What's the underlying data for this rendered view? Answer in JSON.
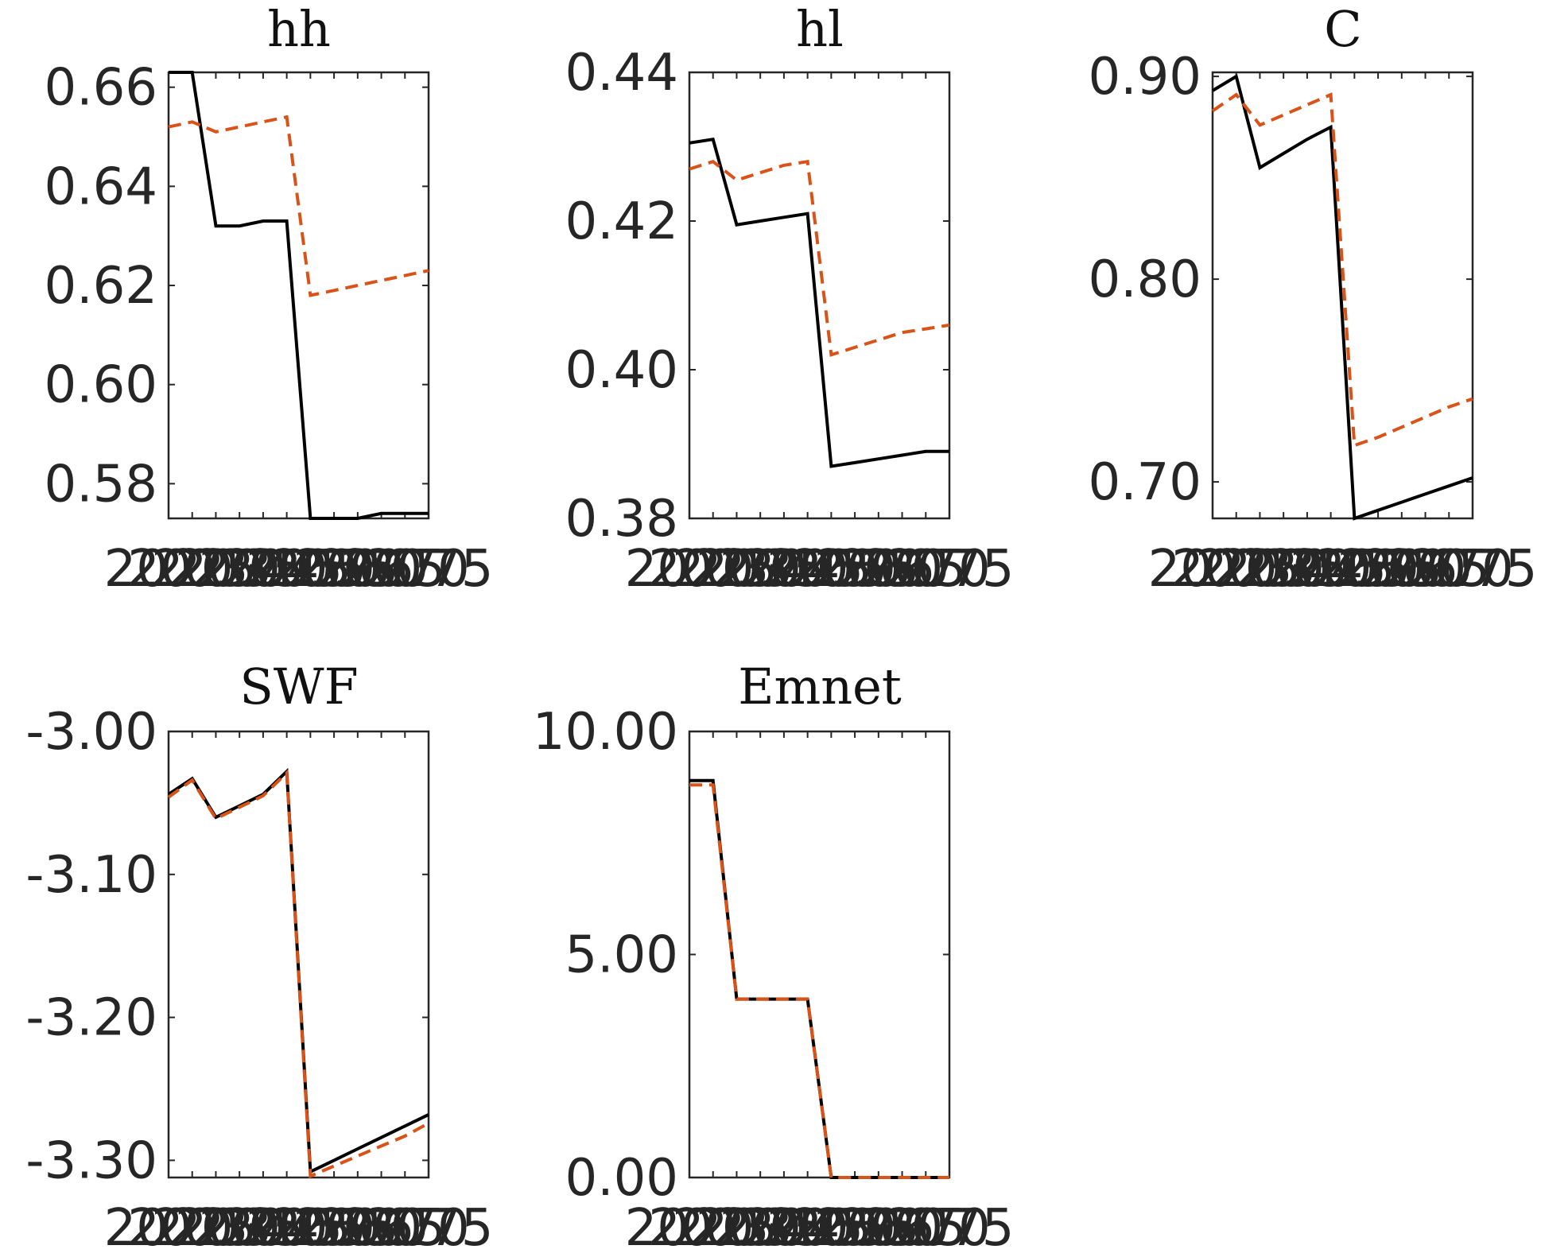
{
  "chart_data": [
    {
      "type": "line",
      "title": "hh",
      "x": [
        2020,
        2025,
        2030,
        2035,
        2040,
        2045,
        2050,
        2055,
        2060,
        2065,
        2070,
        2075
      ],
      "x_tick_labels": [
        "2020",
        "2025",
        "2030",
        "2035",
        "2040",
        "2045",
        "2050",
        "2055",
        "2060",
        "2065",
        "2070",
        "2075"
      ],
      "ylim": [
        0.573,
        0.663
      ],
      "yticks": [
        0.58,
        0.6,
        0.62,
        0.64,
        0.66
      ],
      "ytick_labels": [
        "0.58",
        "0.60",
        "0.62",
        "0.64",
        "0.66"
      ],
      "series": [
        {
          "style": "solid",
          "color": "#000000",
          "values": [
            0.663,
            0.663,
            0.632,
            0.632,
            0.633,
            0.633,
            0.573,
            0.573,
            0.573,
            0.574,
            0.574,
            0.574
          ]
        },
        {
          "style": "dashed",
          "color": "#D95319",
          "values": [
            0.652,
            0.653,
            0.651,
            0.652,
            0.653,
            0.654,
            0.618,
            0.619,
            0.62,
            0.621,
            0.622,
            0.623
          ]
        }
      ]
    },
    {
      "type": "line",
      "title": "hl",
      "x": [
        2020,
        2025,
        2030,
        2035,
        2040,
        2045,
        2050,
        2055,
        2060,
        2065,
        2070,
        2075
      ],
      "x_tick_labels": [
        "2020",
        "2025",
        "2030",
        "2035",
        "2040",
        "2045",
        "2050",
        "2055",
        "2060",
        "2065",
        "2070",
        "2075"
      ],
      "ylim": [
        0.38,
        0.44
      ],
      "yticks": [
        0.38,
        0.4,
        0.42,
        0.44
      ],
      "ytick_labels": [
        "0.38",
        "0.40",
        "0.42",
        "0.44"
      ],
      "series": [
        {
          "style": "solid",
          "color": "#000000",
          "values": [
            0.4305,
            0.431,
            0.4195,
            0.42,
            0.4205,
            0.421,
            0.387,
            0.3875,
            0.388,
            0.3885,
            0.389,
            0.389
          ]
        },
        {
          "style": "dashed",
          "color": "#D95319",
          "values": [
            0.427,
            0.428,
            0.4255,
            0.4265,
            0.4275,
            0.428,
            0.402,
            0.403,
            0.404,
            0.405,
            0.4055,
            0.406
          ]
        }
      ]
    },
    {
      "type": "line",
      "title": "C",
      "x": [
        2020,
        2025,
        2030,
        2035,
        2040,
        2045,
        2050,
        2055,
        2060,
        2065,
        2070,
        2075
      ],
      "x_tick_labels": [
        "2020",
        "2025",
        "2030",
        "2035",
        "2040",
        "2045",
        "2050",
        "2055",
        "2060",
        "2065",
        "2070",
        "2075"
      ],
      "ylim": [
        0.682,
        0.902
      ],
      "yticks": [
        0.7,
        0.8,
        0.9
      ],
      "ytick_labels": [
        "0.70",
        "0.80",
        "0.90"
      ],
      "series": [
        {
          "style": "solid",
          "color": "#000000",
          "values": [
            0.893,
            0.9,
            0.855,
            0.862,
            0.869,
            0.875,
            0.682,
            0.686,
            0.69,
            0.694,
            0.698,
            0.702
          ]
        },
        {
          "style": "dashed",
          "color": "#D95319",
          "values": [
            0.883,
            0.891,
            0.876,
            0.881,
            0.886,
            0.891,
            0.718,
            0.722,
            0.727,
            0.732,
            0.737,
            0.741
          ]
        }
      ]
    },
    {
      "type": "line",
      "title": "SWF",
      "x": [
        2020,
        2025,
        2030,
        2035,
        2040,
        2045,
        2050,
        2055,
        2060,
        2065,
        2070,
        2075
      ],
      "x_tick_labels": [
        "2020",
        "2025",
        "2030",
        "2035",
        "2040",
        "2045",
        "2050",
        "2055",
        "2060",
        "2065",
        "2070",
        "2075"
      ],
      "ylim": [
        -3.312,
        -3.0
      ],
      "yticks": [
        -3.3,
        -3.2,
        -3.1,
        -3.0
      ],
      "ytick_labels": [
        "-3.30",
        "-3.20",
        "-3.10",
        "-3.00"
      ],
      "series": [
        {
          "style": "solid",
          "color": "#000000",
          "values": [
            -3.044,
            -3.033,
            -3.06,
            -3.052,
            -3.044,
            -3.028,
            -3.308,
            -3.3,
            -3.292,
            -3.284,
            -3.276,
            -3.268
          ]
        },
        {
          "style": "dashed",
          "color": "#D95319",
          "values": [
            -3.046,
            -3.034,
            -3.061,
            -3.053,
            -3.045,
            -3.029,
            -3.311,
            -3.304,
            -3.297,
            -3.29,
            -3.283,
            -3.274
          ]
        }
      ]
    },
    {
      "type": "line",
      "title": "Emnet",
      "x": [
        2020,
        2025,
        2030,
        2035,
        2040,
        2045,
        2050,
        2055,
        2060,
        2065,
        2070,
        2075
      ],
      "x_tick_labels": [
        "2020",
        "2025",
        "2030",
        "2035",
        "2040",
        "2045",
        "2050",
        "2055",
        "2060",
        "2065",
        "2070",
        "2075"
      ],
      "ylim": [
        0,
        10
      ],
      "yticks": [
        0.0,
        5.0,
        10.0
      ],
      "ytick_labels": [
        "0.00",
        "5.00",
        "10.00"
      ],
      "series": [
        {
          "style": "solid",
          "color": "#000000",
          "values": [
            8.9,
            8.9,
            4.0,
            4.0,
            4.0,
            4.0,
            0.0,
            0.0,
            0.0,
            0.0,
            0.0,
            0.0
          ]
        },
        {
          "style": "dashed",
          "color": "#D95319",
          "values": [
            8.8,
            8.8,
            4.0,
            4.0,
            4.0,
            4.0,
            0.0,
            0.0,
            0.0,
            0.0,
            0.0,
            0.0
          ]
        }
      ]
    }
  ]
}
